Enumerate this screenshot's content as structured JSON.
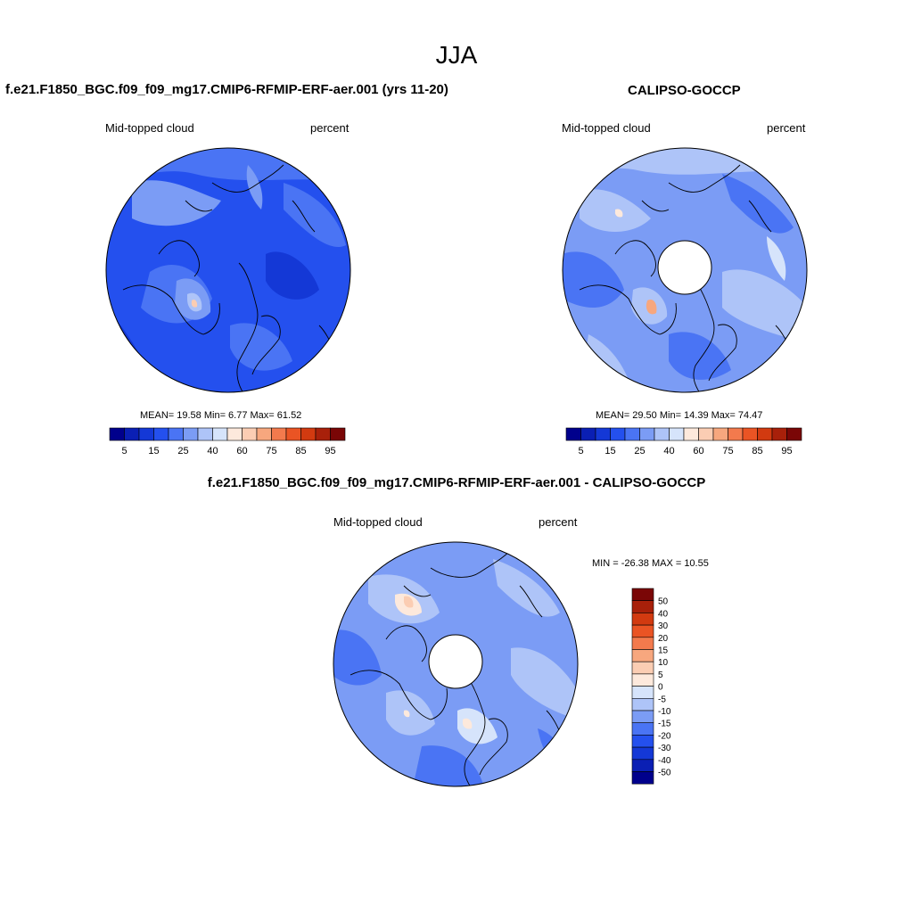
{
  "title": "JJA",
  "panels": {
    "model": {
      "title": "f.e21.F1850_BGC.f09_f09_mg17.CMIP6-RFMIP-ERF-aer.001 (yrs 11-20)",
      "variable": "Mid-topped cloud",
      "units": "percent",
      "stats": "MEAN=  19.58  Min=   6.77  Max=  61.52"
    },
    "obs": {
      "title": "CALIPSO-GOCCP",
      "variable": "Mid-topped cloud",
      "units": "percent",
      "stats": "MEAN=  29.50  Min=  14.39  Max=  74.47"
    },
    "diff": {
      "title": "f.e21.F1850_BGC.f09_f09_mg17.CMIP6-RFMIP-ERF-aer.001 - CALIPSO-GOCCP",
      "variable": "Mid-topped cloud",
      "units": "percent",
      "stats": "MIN = -26.38 MAX =  10.55"
    }
  },
  "colorbar_abs": {
    "colors": [
      "#00008c",
      "#0a1fb4",
      "#1438d6",
      "#2450ee",
      "#4a74f4",
      "#7b9cf5",
      "#aec4f8",
      "#d6e4fb",
      "#fde9dc",
      "#fbcdb3",
      "#f7a77e",
      "#f37a4d",
      "#ea5424",
      "#d23a10",
      "#a8200a",
      "#7a0606"
    ],
    "tick_labels": [
      "5",
      "15",
      "25",
      "40",
      "60",
      "75",
      "85",
      "95"
    ]
  },
  "colorbar_diff": {
    "colors": [
      "#00008c",
      "#0a1fb4",
      "#1438d6",
      "#2450ee",
      "#4a74f4",
      "#7b9cf5",
      "#aec4f8",
      "#d6e4fb",
      "#fde9dc",
      "#fbcdb3",
      "#f7a77e",
      "#f37a4d",
      "#ea5424",
      "#d23a10",
      "#a8200a",
      "#7a0606"
    ],
    "tick_labels": [
      "50",
      "40",
      "30",
      "20",
      "15",
      "10",
      "5",
      "0",
      "-5",
      "-10",
      "-15",
      "-20",
      "-30",
      "-40",
      "-50"
    ]
  }
}
